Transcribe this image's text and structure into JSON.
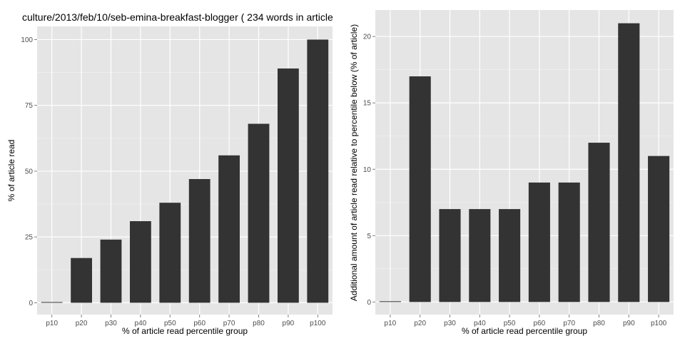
{
  "title": "culture/2013/feb/10/seb-emina-breakfast-blogger ( 234 words in article",
  "colors": {
    "panel_bg": "#e5e5e5",
    "grid": "#ffffff",
    "bar": "#333333",
    "text": "#000000",
    "tick": "#4d4d4d"
  },
  "chart_data": [
    {
      "type": "bar",
      "title": "culture/2013/feb/10/seb-emina-breakfast-blogger ( 234 words in article",
      "xlabel": "% of article read percentile group",
      "ylabel": "% of article read",
      "categories": [
        "p10",
        "p20",
        "p30",
        "p40",
        "p50",
        "p60",
        "p70",
        "p80",
        "p90",
        "p100"
      ],
      "values": [
        0,
        17,
        24,
        31,
        38,
        47,
        56,
        68,
        89,
        100
      ],
      "yticks": [
        0,
        25,
        50,
        75,
        100
      ],
      "ytick_labels": [
        "0",
        "25",
        "50",
        "75",
        "100"
      ],
      "ylim": [
        -4.5,
        105
      ],
      "grid": true,
      "legend": "none"
    },
    {
      "type": "bar",
      "title": "",
      "xlabel": "% of article read percentile group",
      "ylabel": "Additional amount of article read relative to percentile below (% of article)",
      "categories": [
        "p10",
        "p20",
        "p30",
        "p40",
        "p50",
        "p60",
        "p70",
        "p80",
        "p90",
        "p100"
      ],
      "values": [
        0,
        17,
        7,
        7,
        7,
        9,
        9,
        12,
        21,
        11
      ],
      "yticks": [
        0,
        5,
        10,
        15,
        20
      ],
      "ytick_labels": [
        "0",
        "5",
        "10",
        "15",
        "20"
      ],
      "ylim": [
        -0.95,
        22
      ],
      "grid": true,
      "legend": "none"
    }
  ]
}
